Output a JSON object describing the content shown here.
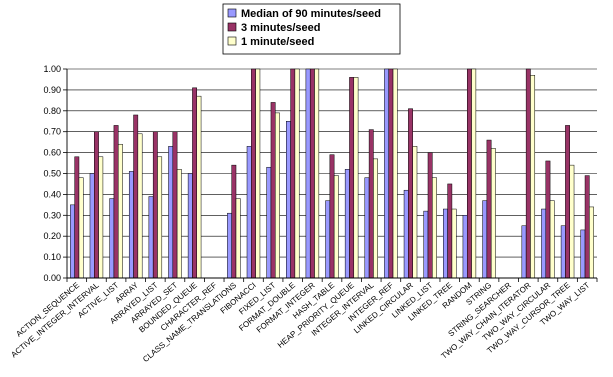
{
  "chart_data": {
    "type": "bar",
    "title": "",
    "xlabel": "",
    "ylabel": "",
    "ylim": [
      0,
      1
    ],
    "yticks": [
      "0.00",
      "0.10",
      "0.20",
      "0.30",
      "0.40",
      "0.50",
      "0.60",
      "0.70",
      "0.80",
      "0.90",
      "1.00"
    ],
    "grid": true,
    "legend_position": "top-center",
    "categories": [
      "ACTION_SEQUENCE",
      "ACTIVE_INTEGER_INTERVAL",
      "ACTIVE_LIST",
      "ARRAY",
      "ARRAYED_LIST",
      "ARRAYED_SET",
      "BOUNDED_QUEUE",
      "CHARACTER_REF",
      "CLASS_NAME_TRANSLATIONS",
      "FIBONACCI",
      "FIXED_LIST",
      "FORMAT_DOUBLE",
      "FORMAT_INTEGER",
      "HASH_TABLE",
      "HEAP_PRIORITY_QUEUE",
      "INTEGER_INTERVAL",
      "INTEGER_REF",
      "LINKED_CIRCULAR",
      "LINKED_LIST",
      "LINKED_TREE",
      "RANDOM",
      "STRING",
      "STRING_SEARCHER",
      "TWO_WAY_CHAIN_ITERATOR",
      "TWO_WAY_CIRCULAR",
      "TWO_WAY_CURSOR_TREE",
      "TWO_WAY_LIST"
    ],
    "series": [
      {
        "name": "Median of 90 minutes/seed",
        "color": "#9999ff",
        "values": [
          0.35,
          0.5,
          0.38,
          0.51,
          0.39,
          0.63,
          0.5,
          0,
          0.31,
          0.63,
          0.53,
          0.75,
          1.0,
          0.37,
          0.52,
          0.48,
          1.0,
          0.42,
          0.32,
          0.33,
          0.3,
          0.37,
          0,
          0.25,
          0.33,
          0.25,
          0.23
        ]
      },
      {
        "name": "3 minutes/seed",
        "color": "#993366",
        "values": [
          0.58,
          0.7,
          0.73,
          0.78,
          0.7,
          0.7,
          0.91,
          0,
          0.54,
          1.0,
          0.84,
          1.0,
          1.0,
          0.59,
          0.96,
          0.71,
          1.0,
          0.81,
          0.6,
          0.45,
          1.0,
          0.66,
          0,
          1.0,
          0.56,
          0.73,
          0.49
        ]
      },
      {
        "name": "1 minute/seed",
        "color": "#ffffcc",
        "values": [
          0.48,
          0.58,
          0.64,
          0.69,
          0.58,
          0.52,
          0.87,
          0,
          0.38,
          1.0,
          0.79,
          1.0,
          1.0,
          0.49,
          0.96,
          0.57,
          1.0,
          0.63,
          0.48,
          0.33,
          1.0,
          0.62,
          0,
          0.97,
          0.37,
          0.54,
          0.34
        ]
      }
    ]
  }
}
